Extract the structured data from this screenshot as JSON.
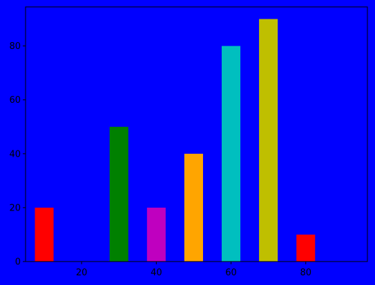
{
  "chart_data": {
    "type": "bar",
    "title": "",
    "xlabel": "",
    "ylabel": "",
    "x": [
      10,
      20,
      30,
      40,
      50,
      60,
      70,
      80
    ],
    "values": [
      20,
      0,
      50,
      20,
      40,
      80,
      90,
      10
    ],
    "bar_colors": [
      "#ff0000",
      "#0000ff",
      "#008000",
      "#bf00bf",
      "#ffa500",
      "#00bfbf",
      "#bfbf00",
      "#ff0000"
    ],
    "bar_width": 5,
    "xlim": [
      5,
      96.5
    ],
    "ylim": [
      0,
      94.5
    ],
    "xticks": [
      20,
      40,
      60,
      80
    ],
    "yticks": [
      0,
      20,
      40,
      60,
      80
    ],
    "grid": false,
    "colors": {
      "background": "#0000ff",
      "axes_face": "#0000ff",
      "axis_line": "#000000",
      "tick_text": "#000000"
    }
  }
}
